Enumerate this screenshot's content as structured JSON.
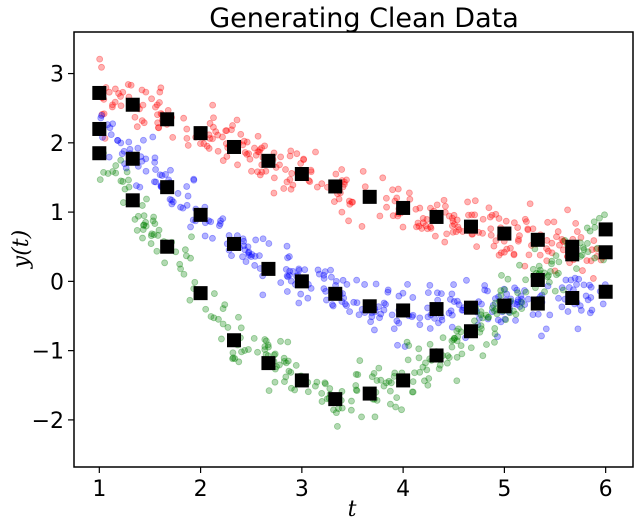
{
  "chart_data": {
    "type": "scatter",
    "title": "Generating Clean Data",
    "xlabel": "t",
    "ylabel": "y(t)",
    "xlim": [
      0.75,
      6.27
    ],
    "ylim": [
      -2.68,
      3.6
    ],
    "xticks": [
      1,
      2,
      3,
      4,
      5,
      6
    ],
    "yticks": [
      -2,
      -1,
      0,
      1,
      2,
      3
    ],
    "grid": false,
    "series": [
      {
        "color": "#ff0000",
        "marker": "circle",
        "alpha": 0.3,
        "mean_curve": [
          [
            1,
            2.72
          ],
          [
            1.33,
            2.55
          ],
          [
            1.67,
            2.34
          ],
          [
            2,
            2.14
          ],
          [
            2.33,
            1.94
          ],
          [
            2.67,
            1.74
          ],
          [
            3,
            1.55
          ],
          [
            3.33,
            1.37
          ],
          [
            3.67,
            1.22
          ],
          [
            4,
            1.06
          ],
          [
            4.33,
            0.93
          ],
          [
            4.67,
            0.79
          ],
          [
            5,
            0.69
          ],
          [
            5.33,
            0.6
          ],
          [
            5.67,
            0.5
          ],
          [
            6,
            0.42
          ]
        ],
        "noise": 0.18
      },
      {
        "color": "#0000ff",
        "marker": "circle",
        "alpha": 0.3,
        "mean_curve": [
          [
            1,
            2.2
          ],
          [
            1.33,
            1.77
          ],
          [
            1.67,
            1.36
          ],
          [
            2,
            0.96
          ],
          [
            2.33,
            0.54
          ],
          [
            2.67,
            0.18
          ],
          [
            3,
            0.0
          ],
          [
            3.33,
            -0.18
          ],
          [
            3.67,
            -0.36
          ],
          [
            4,
            -0.42
          ],
          [
            4.33,
            -0.4
          ],
          [
            4.67,
            -0.38
          ],
          [
            5,
            -0.36
          ],
          [
            5.33,
            -0.32
          ],
          [
            5.67,
            -0.24
          ],
          [
            6,
            -0.15
          ]
        ],
        "noise": 0.18
      },
      {
        "color": "#008000",
        "marker": "circle",
        "alpha": 0.3,
        "mean_curve": [
          [
            1,
            1.85
          ],
          [
            1.33,
            1.17
          ],
          [
            1.67,
            0.5
          ],
          [
            2,
            -0.17
          ],
          [
            2.33,
            -0.85
          ],
          [
            2.67,
            -1.18
          ],
          [
            3,
            -1.43
          ],
          [
            3.33,
            -1.7
          ],
          [
            3.67,
            -1.62
          ],
          [
            4,
            -1.43
          ],
          [
            4.33,
            -1.07
          ],
          [
            4.67,
            -0.72
          ],
          [
            5,
            -0.35
          ],
          [
            5.33,
            0.02
          ],
          [
            5.67,
            0.39
          ],
          [
            6,
            0.75
          ]
        ],
        "noise": 0.2
      }
    ],
    "markers": {
      "color": "#000000",
      "shape": "square",
      "x": [
        1,
        1,
        1,
        1.33,
        1.33,
        1.33,
        1.67,
        1.67,
        1.67,
        2,
        2,
        2,
        2.33,
        2.33,
        2.33,
        2.67,
        2.67,
        2.67,
        3,
        3,
        3,
        3.33,
        3.33,
        3.33,
        3.67,
        3.67,
        3.67,
        4,
        4,
        4,
        4.33,
        4.33,
        4.33,
        4.67,
        4.67,
        4.67,
        5,
        5,
        5,
        5.33,
        5.33,
        5.33,
        5.67,
        5.67,
        5.67,
        6,
        6,
        6
      ],
      "y": [
        2.72,
        2.2,
        1.85,
        2.55,
        1.77,
        1.17,
        2.34,
        1.36,
        0.5,
        2.14,
        0.96,
        -0.17,
        1.94,
        0.54,
        -0.85,
        1.74,
        0.18,
        -1.18,
        1.55,
        0.0,
        -1.43,
        1.37,
        -0.18,
        -1.7,
        1.22,
        -0.36,
        -1.62,
        1.06,
        -0.42,
        -1.43,
        0.93,
        -0.4,
        -1.07,
        0.79,
        -0.38,
        -0.72,
        0.69,
        -0.36,
        -0.35,
        0.6,
        -0.32,
        0.02,
        0.5,
        -0.24,
        0.39,
        0.42,
        -0.15,
        0.75
      ]
    }
  }
}
